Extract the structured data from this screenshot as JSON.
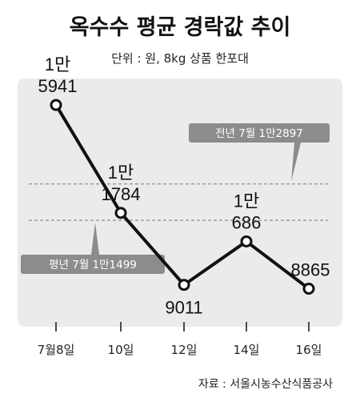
{
  "title": "옥수수 평균 경락값 추이",
  "subtitle": "단위 : 원, 8kg 상품 한포대",
  "source": "자료 : 서울시농수산식품공사",
  "colors": {
    "panel": "#ebebeb",
    "line": "#111111",
    "callout": "#8c8c8c",
    "dash": "#777777"
  },
  "chart_data": {
    "type": "line",
    "categories": [
      "7월8일",
      "10일",
      "12일",
      "14일",
      "16일"
    ],
    "values": [
      15941,
      11784,
      9011,
      10686,
      8865
    ],
    "value_labels": [
      [
        "1만",
        "5941"
      ],
      [
        "1만",
        "1784"
      ],
      [
        "9011"
      ],
      [
        "1만",
        "686"
      ],
      [
        "8865"
      ]
    ],
    "reference_lines": [
      {
        "label": "전년 7월 1만2897",
        "value": 12897
      },
      {
        "label": "평년 7월 1만1499",
        "value": 11499
      }
    ],
    "ylim": [
      7800,
      16900
    ],
    "grid": false,
    "legend": "none"
  }
}
